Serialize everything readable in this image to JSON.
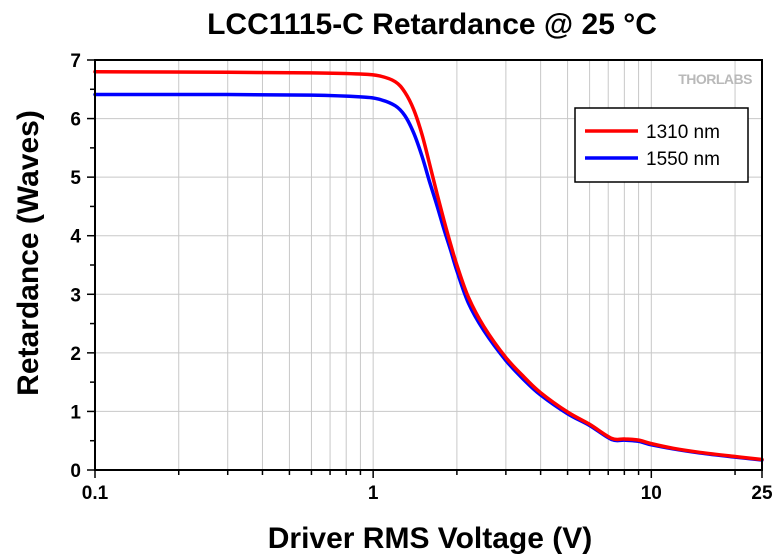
{
  "brand": {
    "logo_text": "THORLABS"
  },
  "chart_data": {
    "type": "line",
    "title": "LCC1115-C Retardance @ 25 °C",
    "xlabel": "Driver RMS Voltage (V)",
    "ylabel": "Retardance (Waves)",
    "xscale": "log",
    "xlim": [
      0.1,
      25
    ],
    "ylim": [
      0,
      7
    ],
    "xticks": [
      0.1,
      1,
      10,
      25
    ],
    "xtick_labels": [
      "0.1",
      "1",
      "10",
      "25"
    ],
    "yticks": [
      0,
      1,
      2,
      3,
      4,
      5,
      6,
      7
    ],
    "ytick_labels": [
      "0",
      "1",
      "2",
      "3",
      "4",
      "5",
      "6",
      "7"
    ],
    "grid": true,
    "legend": {
      "position": "top-right"
    },
    "series": [
      {
        "name": "1310 nm",
        "color": "#ff0000",
        "x": [
          0.1,
          0.3,
          0.6,
          0.9,
          1.05,
          1.2,
          1.3,
          1.4,
          1.5,
          1.6,
          1.7,
          1.8,
          1.9,
          2.0,
          2.2,
          2.5,
          3.0,
          3.5,
          4.0,
          5.0,
          6.0,
          7.2,
          8.0,
          9.0,
          10.0,
          12.0,
          15.0,
          20.0,
          25.0
        ],
        "y": [
          6.8,
          6.79,
          6.78,
          6.76,
          6.73,
          6.63,
          6.45,
          6.15,
          5.72,
          5.2,
          4.7,
          4.25,
          3.85,
          3.5,
          2.95,
          2.45,
          1.92,
          1.58,
          1.32,
          0.99,
          0.78,
          0.54,
          0.53,
          0.51,
          0.45,
          0.37,
          0.3,
          0.23,
          0.18
        ]
      },
      {
        "name": "1550 nm",
        "color": "#0000ff",
        "x": [
          0.1,
          0.3,
          0.6,
          0.9,
          1.05,
          1.2,
          1.3,
          1.4,
          1.5,
          1.6,
          1.7,
          1.8,
          1.9,
          2.0,
          2.2,
          2.5,
          3.0,
          3.5,
          4.0,
          5.0,
          6.0,
          7.2,
          8.0,
          9.0,
          10.0,
          12.0,
          15.0,
          20.0,
          25.0
        ],
        "y": [
          6.41,
          6.41,
          6.4,
          6.37,
          6.33,
          6.22,
          6.05,
          5.75,
          5.35,
          4.9,
          4.5,
          4.1,
          3.75,
          3.4,
          2.85,
          2.38,
          1.87,
          1.53,
          1.28,
          0.96,
          0.76,
          0.52,
          0.51,
          0.49,
          0.43,
          0.36,
          0.29,
          0.22,
          0.17
        ]
      }
    ]
  }
}
